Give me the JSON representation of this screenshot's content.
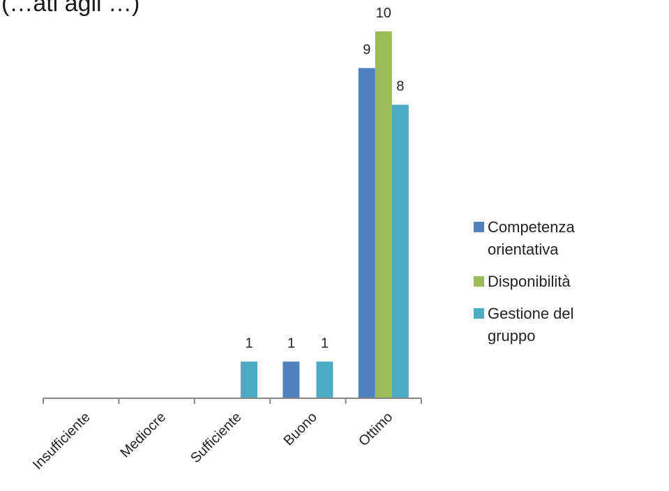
{
  "chart_data": {
    "type": "bar",
    "title": "(…ati agli …)",
    "categories": [
      "Insufficiente",
      "Mediocre",
      "Sufficiente",
      "Buono",
      "Ottimo"
    ],
    "series": [
      {
        "name": "Competenza orientativa",
        "color": "#4f81bd",
        "values": [
          0,
          0,
          0,
          1,
          9
        ]
      },
      {
        "name": "Disponibilità",
        "color": "#9bbb59",
        "values": [
          0,
          0,
          0,
          0,
          10
        ]
      },
      {
        "name": "Gestione del gruppo",
        "color": "#4bacc6",
        "values": [
          0,
          0,
          1,
          1,
          8
        ]
      }
    ],
    "ylim": [
      0,
      10
    ],
    "grid": false,
    "legend": "right"
  }
}
